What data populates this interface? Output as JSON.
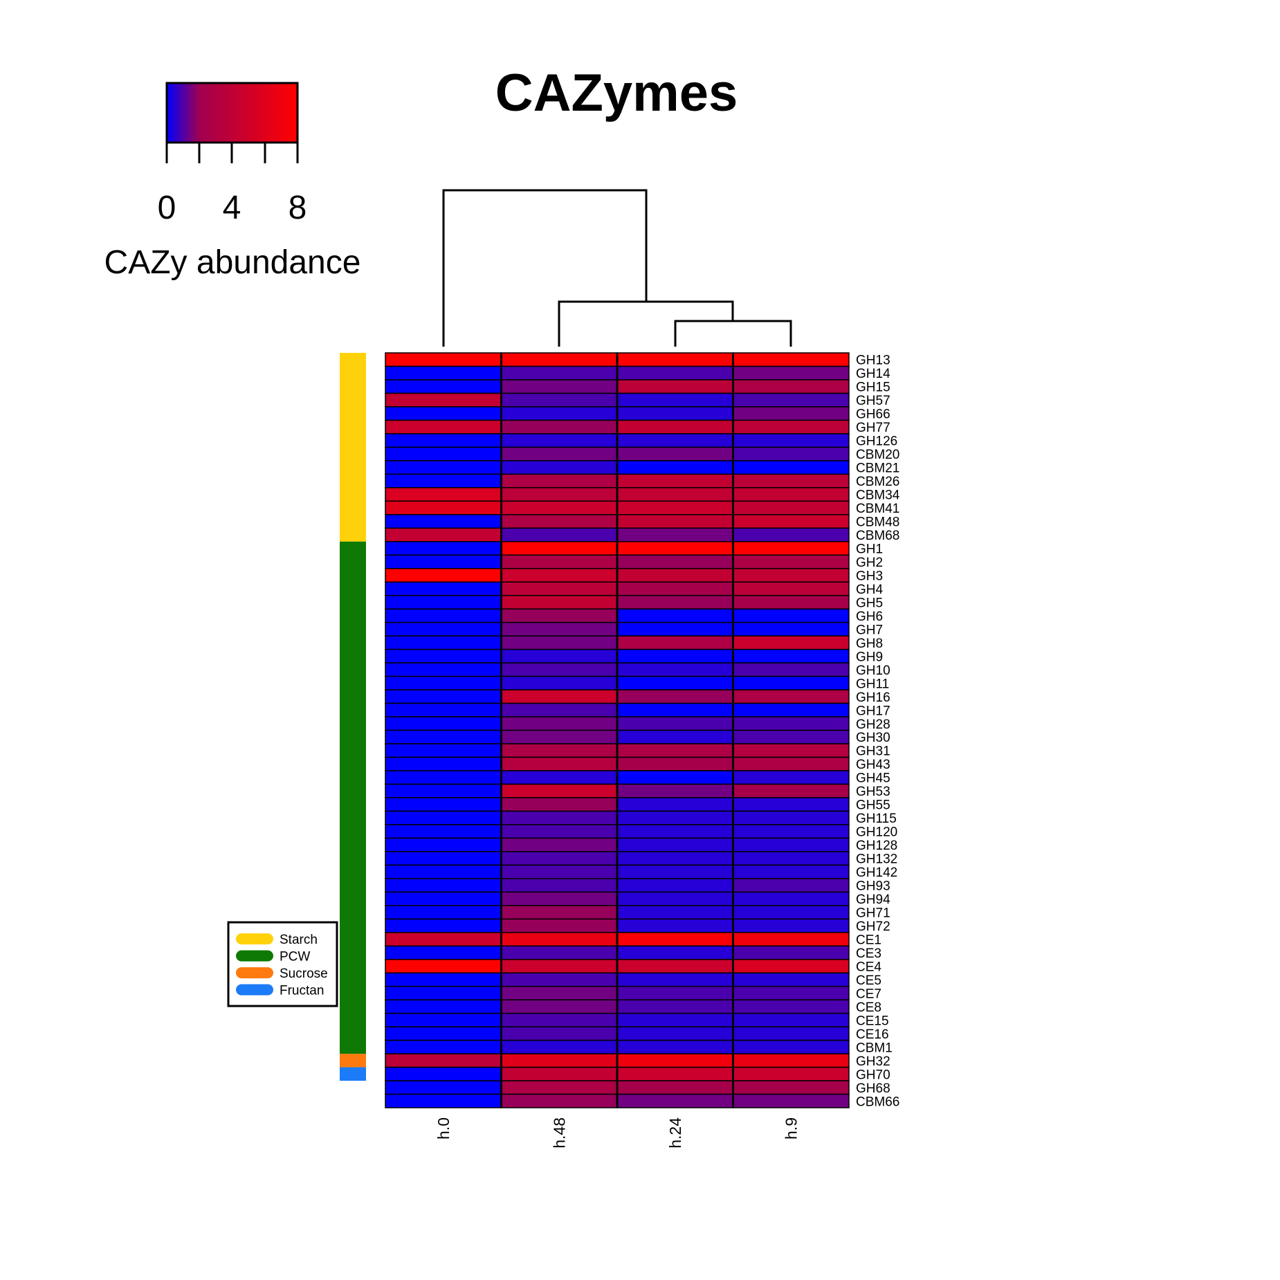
{
  "chart_data": {
    "type": "heatmap",
    "title": "CAZymes",
    "columns": [
      "h.0",
      "h.48",
      "h.24",
      "h.9"
    ],
    "rows": [
      "GH13",
      "GH14",
      "GH15",
      "GH57",
      "GH66",
      "GH77",
      "GH126",
      "CBM20",
      "CBM21",
      "CBM26",
      "CBM34",
      "CBM41",
      "CBM48",
      "CBM68",
      "GH1",
      "GH2",
      "GH3",
      "GH4",
      "GH5",
      "GH6",
      "GH7",
      "GH8",
      "GH9",
      "GH10",
      "GH11",
      "GH16",
      "GH17",
      "GH28",
      "GH30",
      "GH31",
      "GH43",
      "GH45",
      "GH53",
      "GH55",
      "GH115",
      "GH120",
      "GH128",
      "GH132",
      "GH142",
      "GH93",
      "GH94",
      "GH71",
      "GH72",
      "CE1",
      "CE3",
      "CE4",
      "CE5",
      "CE7",
      "CE8",
      "CE15",
      "CE16",
      "CBM1",
      "GH32",
      "GH70",
      "GH68",
      "CBM66"
    ],
    "values": [
      [
        8.5,
        8.5,
        8.5,
        8.5
      ],
      [
        0,
        1,
        1,
        1.5
      ],
      [
        0,
        1.5,
        4,
        3
      ],
      [
        4.5,
        1,
        0.5,
        1
      ],
      [
        0,
        0.5,
        0.5,
        1.5
      ],
      [
        5,
        2,
        4.5,
        4
      ],
      [
        0,
        0.5,
        0.5,
        0.5
      ],
      [
        0,
        1.5,
        1.5,
        1
      ],
      [
        0,
        0.5,
        0,
        0
      ],
      [
        0,
        3,
        4.5,
        4
      ],
      [
        6,
        4,
        4.5,
        4.5
      ],
      [
        6.5,
        5,
        5,
        4.5
      ],
      [
        0,
        3,
        4.5,
        5
      ],
      [
        4.5,
        1,
        1.5,
        1
      ],
      [
        0,
        8.5,
        8.5,
        8.5
      ],
      [
        0,
        3,
        2,
        3
      ],
      [
        8.5,
        5,
        4.5,
        4.5
      ],
      [
        0,
        4,
        2.5,
        4
      ],
      [
        0,
        4.5,
        2,
        2.5
      ],
      [
        0,
        2,
        0,
        0
      ],
      [
        0,
        1.5,
        0,
        0
      ],
      [
        0,
        1.5,
        3,
        5
      ],
      [
        0,
        0.5,
        0,
        0
      ],
      [
        0,
        1,
        0.5,
        1
      ],
      [
        0,
        0.5,
        0,
        0
      ],
      [
        0,
        5,
        2,
        3
      ],
      [
        0,
        1,
        0,
        0
      ],
      [
        0,
        1.5,
        1,
        1
      ],
      [
        0,
        1.5,
        0.5,
        1
      ],
      [
        0,
        3,
        3,
        3.5
      ],
      [
        0,
        3.5,
        2.5,
        3
      ],
      [
        0,
        0.5,
        0,
        0.5
      ],
      [
        0,
        5,
        1.5,
        2.5
      ],
      [
        0,
        2,
        0.5,
        0.5
      ],
      [
        0,
        1,
        0.5,
        0.5
      ],
      [
        0,
        1,
        0.5,
        0.5
      ],
      [
        0,
        1.5,
        0.5,
        0.5
      ],
      [
        0,
        1,
        0.5,
        0.5
      ],
      [
        0,
        1,
        0.5,
        0.5
      ],
      [
        0,
        1,
        0.5,
        1
      ],
      [
        0,
        1.5,
        0.5,
        0.5
      ],
      [
        0,
        2,
        0.5,
        0.5
      ],
      [
        0,
        2,
        0.5,
        0.5
      ],
      [
        5,
        7,
        8,
        7.5
      ],
      [
        0,
        1,
        0.5,
        1
      ],
      [
        8.5,
        5,
        5,
        6
      ],
      [
        0,
        1,
        0.5,
        0.5
      ],
      [
        0,
        1.5,
        1,
        1
      ],
      [
        0,
        1.5,
        1,
        1
      ],
      [
        0,
        1,
        0.5,
        0.5
      ],
      [
        0,
        1,
        0.5,
        0.5
      ],
      [
        0,
        0.5,
        0.5,
        0.5
      ],
      [
        4,
        6.5,
        7.5,
        7
      ],
      [
        0,
        4.5,
        5,
        5
      ],
      [
        0,
        3,
        2.5,
        2.5
      ],
      [
        0,
        2,
        1.5,
        1.5
      ]
    ],
    "row_groups": [
      {
        "name": "Starch",
        "color": "#FFD10A",
        "count": 14
      },
      {
        "name": "PCW",
        "color": "#0E7A05",
        "count": 38
      },
      {
        "name": "Sucrose",
        "color": "#FF7A0E",
        "count": 1
      },
      {
        "name": "Fructan",
        "color": "#1C7BF6",
        "count": 1
      }
    ],
    "color_scale": {
      "low": "#0000FF",
      "mid": "#A00050",
      "high": "#FF0000",
      "min": 0,
      "max": 8.5,
      "ticks": [
        "0",
        "4",
        "8"
      ],
      "label": "CAZy abundance"
    },
    "legend": {
      "placement": "bottom-left",
      "entries": [
        "Starch",
        "PCW",
        "Sucrose",
        "Fructan"
      ]
    },
    "dendrogram": "columns"
  }
}
